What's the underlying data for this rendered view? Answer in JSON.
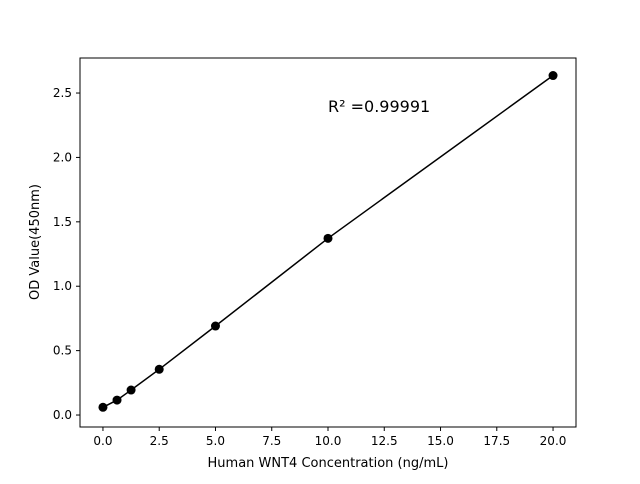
{
  "chart_data": {
    "type": "line",
    "title": "",
    "xlabel": "Human WNT4 Concentration (ng/mL)",
    "ylabel": "OD Value(450nm)",
    "annotation": "R² =0.99991",
    "annotation_pos": [
      10.0,
      2.4
    ],
    "x": [
      0,
      0.625,
      1.25,
      2.5,
      5,
      10,
      20
    ],
    "y": [
      0.06,
      0.116,
      0.194,
      0.355,
      0.691,
      1.372,
      2.636
    ],
    "xlim": [
      -1.02,
      21.02
    ],
    "ylim": [
      -0.093,
      2.772
    ],
    "xticks": [
      0,
      2.5,
      5,
      7.5,
      10,
      12.5,
      15,
      17.5,
      20
    ],
    "xtick_labels": [
      "0.0",
      "2.5",
      "5.0",
      "7.5",
      "10.0",
      "12.5",
      "15.0",
      "17.5",
      "20.0"
    ],
    "yticks": [
      0,
      0.5,
      1,
      1.5,
      2,
      2.5
    ],
    "ytick_labels": [
      "0.0",
      "0.5",
      "1.0",
      "1.5",
      "2.0",
      "2.5"
    ],
    "grid": false,
    "line_color": "#000000",
    "marker": "circle"
  }
}
